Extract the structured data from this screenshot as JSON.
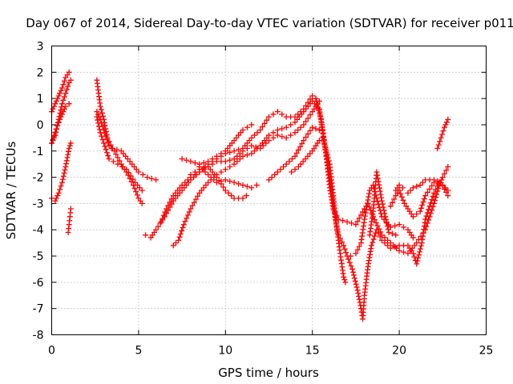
{
  "chart_data": {
    "type": "scatter",
    "title": "Day 067 of 2014, Sidereal Day-to-day VTEC variation (SDTVAR) for receiver p011",
    "xlabel": "GPS time / hours",
    "ylabel": "SDTVAR / TECUs",
    "xlim": [
      0,
      25
    ],
    "ylim": [
      -8,
      3
    ],
    "xticks": [
      "0",
      "5",
      "10",
      "15",
      "20",
      "25"
    ],
    "yticks": [
      "-8",
      "-7",
      "-6",
      "-5",
      "-4",
      "-3",
      "-2",
      "-1",
      "0",
      "1",
      "2",
      "3"
    ],
    "grid": true,
    "marker": "plus",
    "color": "#ff0000",
    "series": [
      {
        "points": [
          [
            0.0,
            0.5
          ],
          [
            0.2,
            0.8
          ],
          [
            0.4,
            1.1
          ],
          [
            0.6,
            1.4
          ],
          [
            0.8,
            1.8
          ],
          [
            1.0,
            2.0
          ]
        ]
      },
      {
        "points": [
          [
            0.0,
            -0.7
          ],
          [
            0.2,
            -0.4
          ],
          [
            0.4,
            0.2
          ],
          [
            0.6,
            0.8
          ],
          [
            0.8,
            1.2
          ],
          [
            1.0,
            1.6
          ],
          [
            1.1,
            1.7
          ]
        ]
      },
      {
        "points": [
          [
            0.0,
            -0.7
          ],
          [
            0.2,
            -0.3
          ],
          [
            0.4,
            0.1
          ],
          [
            0.6,
            0.4
          ],
          [
            0.8,
            0.7
          ],
          [
            1.0,
            0.8
          ]
        ]
      },
      {
        "points": [
          [
            0.0,
            -2.8
          ],
          [
            0.2,
            -2.9
          ],
          [
            0.4,
            -2.6
          ],
          [
            0.6,
            -2.2
          ],
          [
            0.8,
            -1.6
          ],
          [
            1.0,
            -0.9
          ],
          [
            1.1,
            -0.7
          ]
        ]
      },
      {
        "points": [
          [
            0.95,
            -4.1
          ],
          [
            1.0,
            -3.8
          ],
          [
            1.05,
            -3.5
          ],
          [
            1.1,
            -3.2
          ]
        ]
      },
      {
        "points": [
          [
            2.6,
            1.7
          ],
          [
            2.7,
            1.2
          ],
          [
            2.8,
            0.7
          ],
          [
            3.0,
            0.2
          ],
          [
            3.2,
            -0.5
          ],
          [
            3.5,
            -0.9
          ],
          [
            4.0,
            -1.0
          ],
          [
            4.5,
            -1.4
          ],
          [
            5.0,
            -1.8
          ],
          [
            5.5,
            -2.0
          ],
          [
            6.0,
            -2.1
          ]
        ]
      },
      {
        "points": [
          [
            2.6,
            0.5
          ],
          [
            2.8,
            0.2
          ],
          [
            3.0,
            -0.2
          ],
          [
            3.3,
            -0.8
          ],
          [
            3.6,
            -1.0
          ],
          [
            4.0,
            -1.5
          ],
          [
            4.3,
            -1.8
          ],
          [
            4.7,
            -2.3
          ],
          [
            5.0,
            -2.8
          ],
          [
            5.2,
            -3.0
          ]
        ]
      },
      {
        "points": [
          [
            2.6,
            0.3
          ],
          [
            2.8,
            -0.3
          ],
          [
            3.0,
            -0.7
          ],
          [
            3.3,
            -1.3
          ],
          [
            3.8,
            -1.5
          ],
          [
            4.3,
            -1.7
          ],
          [
            4.8,
            -2.2
          ],
          [
            5.2,
            -2.5
          ]
        ]
      },
      {
        "points": [
          [
            5.4,
            -4.2
          ],
          [
            5.7,
            -4.3
          ],
          [
            6.0,
            -4.0
          ],
          [
            6.5,
            -3.5
          ],
          [
            7.0,
            -2.9
          ],
          [
            7.5,
            -2.5
          ],
          [
            8.0,
            -2.1
          ],
          [
            8.5,
            -1.8
          ],
          [
            9.0,
            -1.5
          ],
          [
            9.5,
            -1.3
          ],
          [
            10.0,
            -1.1
          ],
          [
            10.5,
            -1.0
          ],
          [
            11.0,
            -0.9
          ],
          [
            11.5,
            -0.5
          ],
          [
            12.0,
            -0.2
          ],
          [
            12.5,
            0.3
          ],
          [
            13.0,
            0.5
          ],
          [
            13.5,
            0.3
          ],
          [
            14.0,
            0.3
          ],
          [
            14.5,
            0.6
          ],
          [
            15.0,
            1.1
          ],
          [
            15.2,
            1.0
          ]
        ]
      },
      {
        "points": [
          [
            7.0,
            -4.6
          ],
          [
            7.3,
            -4.4
          ],
          [
            7.6,
            -3.8
          ],
          [
            8.0,
            -3.2
          ],
          [
            8.5,
            -2.6
          ],
          [
            9.0,
            -2.2
          ],
          [
            9.5,
            -1.9
          ],
          [
            10.0,
            -1.7
          ],
          [
            10.5,
            -1.5
          ],
          [
            11.0,
            -1.2
          ],
          [
            11.5,
            -1.1
          ],
          [
            12.0,
            -0.8
          ],
          [
            12.5,
            -0.4
          ],
          [
            13.0,
            -0.2
          ],
          [
            13.5,
            -0.1
          ],
          [
            14.0,
            0.1
          ],
          [
            14.5,
            0.5
          ],
          [
            15.0,
            0.9
          ],
          [
            15.4,
            0.6
          ]
        ]
      },
      {
        "points": [
          [
            6.3,
            -3.7
          ],
          [
            6.6,
            -3.2
          ],
          [
            7.0,
            -2.7
          ],
          [
            7.5,
            -2.3
          ],
          [
            8.0,
            -2.0
          ],
          [
            8.5,
            -1.8
          ],
          [
            9.0,
            -1.6
          ],
          [
            9.5,
            -1.4
          ],
          [
            10.0,
            -1.4
          ],
          [
            10.5,
            -1.3
          ],
          [
            11.0,
            -1.0
          ],
          [
            11.5,
            -0.8
          ],
          [
            12.0,
            -0.9
          ],
          [
            12.5,
            -0.6
          ],
          [
            13.0,
            -0.4
          ],
          [
            13.5,
            -0.5
          ],
          [
            14.0,
            -0.3
          ],
          [
            14.5,
            0.0
          ],
          [
            15.0,
            0.5
          ],
          [
            15.4,
            0.9
          ]
        ]
      },
      {
        "points": [
          [
            7.5,
            -1.3
          ],
          [
            8.0,
            -1.4
          ],
          [
            8.5,
            -1.5
          ],
          [
            9.0,
            -1.4
          ],
          [
            9.5,
            -1.2
          ],
          [
            10.0,
            -1.0
          ],
          [
            10.5,
            -0.6
          ],
          [
            11.0,
            -0.2
          ],
          [
            11.5,
            0.0
          ]
        ]
      },
      {
        "points": [
          [
            8.0,
            -1.9
          ],
          [
            8.5,
            -1.7
          ],
          [
            9.0,
            -1.6
          ],
          [
            9.5,
            -2.0
          ],
          [
            10.0,
            -2.5
          ],
          [
            10.5,
            -2.8
          ],
          [
            11.0,
            -2.8
          ],
          [
            11.2,
            -2.7
          ]
        ]
      },
      {
        "points": [
          [
            8.5,
            -1.6
          ],
          [
            9.0,
            -1.9
          ],
          [
            9.5,
            -2.2
          ],
          [
            10.0,
            -2.1
          ],
          [
            10.5,
            -2.2
          ],
          [
            11.0,
            -2.3
          ],
          [
            11.5,
            -2.4
          ],
          [
            11.8,
            -2.3
          ]
        ]
      },
      {
        "points": [
          [
            12.5,
            -2.1
          ],
          [
            13.0,
            -1.8
          ],
          [
            13.5,
            -1.5
          ],
          [
            14.0,
            -1.2
          ],
          [
            14.5,
            -0.6
          ],
          [
            15.0,
            -0.1
          ],
          [
            15.4,
            -0.2
          ]
        ]
      },
      {
        "points": [
          [
            13.8,
            -1.8
          ],
          [
            14.2,
            -1.6
          ],
          [
            14.6,
            -1.3
          ],
          [
            15.0,
            -1.0
          ],
          [
            15.4,
            -0.6
          ]
        ]
      },
      {
        "points": [
          [
            15.2,
            1.0
          ],
          [
            15.5,
            0.2
          ],
          [
            15.8,
            -1.2
          ],
          [
            16.0,
            -2.4
          ],
          [
            16.2,
            -3.2
          ],
          [
            16.5,
            -3.6
          ],
          [
            17.0,
            -3.7
          ],
          [
            17.5,
            -3.8
          ],
          [
            18.0,
            -3.2
          ],
          [
            18.2,
            -3.0
          ],
          [
            18.5,
            -3.5
          ],
          [
            19.0,
            -4.2
          ],
          [
            19.5,
            -4.5
          ],
          [
            20.0,
            -4.8
          ],
          [
            20.5,
            -4.9
          ],
          [
            21.0,
            -4.5
          ],
          [
            21.5,
            -4.0
          ],
          [
            22.0,
            -3.0
          ],
          [
            22.3,
            -2.3
          ],
          [
            22.5,
            -2.0
          ],
          [
            22.8,
            -1.6
          ]
        ]
      },
      {
        "points": [
          [
            15.4,
            0.6
          ],
          [
            15.7,
            -0.7
          ],
          [
            16.0,
            -2.0
          ],
          [
            16.3,
            -3.5
          ],
          [
            16.5,
            -4.2
          ],
          [
            16.8,
            -4.6
          ],
          [
            17.0,
            -5.0
          ],
          [
            17.3,
            -5.5
          ],
          [
            17.6,
            -6.3
          ],
          [
            17.8,
            -7.0
          ],
          [
            17.9,
            -7.4
          ],
          [
            18.0,
            -6.5
          ],
          [
            18.2,
            -5.4
          ],
          [
            18.4,
            -4.6
          ],
          [
            18.7,
            -4.0
          ],
          [
            19.0,
            -4.4
          ],
          [
            19.5,
            -4.7
          ],
          [
            20.0,
            -4.6
          ],
          [
            20.5,
            -4.6
          ],
          [
            20.8,
            -4.9
          ],
          [
            21.0,
            -5.3
          ],
          [
            21.3,
            -4.5
          ],
          [
            21.5,
            -3.6
          ],
          [
            22.0,
            -2.6
          ],
          [
            22.3,
            -2.2
          ]
        ]
      },
      {
        "points": [
          [
            15.6,
            -0.5
          ],
          [
            16.0,
            -1.5
          ],
          [
            16.2,
            -2.7
          ],
          [
            16.4,
            -3.9
          ],
          [
            16.6,
            -4.9
          ],
          [
            16.8,
            -5.8
          ],
          [
            16.9,
            -6.0
          ]
        ]
      },
      {
        "points": [
          [
            17.2,
            -5.0
          ],
          [
            17.5,
            -4.9
          ],
          [
            17.8,
            -4.5
          ],
          [
            18.0,
            -3.6
          ],
          [
            18.3,
            -2.5
          ],
          [
            18.5,
            -2.3
          ],
          [
            18.7,
            -2.8
          ],
          [
            19.0,
            -3.5
          ],
          [
            19.5,
            -3.9
          ],
          [
            20.0,
            -3.8
          ],
          [
            20.5,
            -4.0
          ],
          [
            20.8,
            -4.3
          ]
        ]
      },
      {
        "points": [
          [
            18.3,
            -4.2
          ],
          [
            18.5,
            -3.3
          ],
          [
            18.7,
            -1.8
          ],
          [
            19.0,
            -2.9
          ],
          [
            19.4,
            -4.1
          ],
          [
            19.8,
            -4.2
          ]
        ]
      },
      {
        "points": [
          [
            19.5,
            -3.1
          ],
          [
            19.8,
            -2.7
          ],
          [
            20.0,
            -2.5
          ],
          [
            20.3,
            -3.0
          ],
          [
            20.5,
            -3.2
          ],
          [
            20.8,
            -3.5
          ],
          [
            21.2,
            -3.3
          ],
          [
            21.5,
            -2.7
          ],
          [
            22.0,
            -2.2
          ],
          [
            22.5,
            -2.3
          ],
          [
            22.8,
            -2.5
          ]
        ]
      },
      {
        "points": [
          [
            19.8,
            -2.5
          ],
          [
            20.0,
            -2.3
          ],
          [
            20.2,
            -2.4
          ]
        ]
      },
      {
        "points": [
          [
            20.5,
            -2.6
          ],
          [
            20.8,
            -2.4
          ],
          [
            21.2,
            -2.3
          ],
          [
            21.5,
            -2.1
          ],
          [
            22.0,
            -2.1
          ],
          [
            22.4,
            -2.2
          ],
          [
            22.8,
            -2.7
          ]
        ]
      },
      {
        "points": [
          [
            22.2,
            -0.9
          ],
          [
            22.4,
            -0.5
          ],
          [
            22.6,
            -0.1
          ],
          [
            22.8,
            0.2
          ]
        ]
      }
    ]
  }
}
